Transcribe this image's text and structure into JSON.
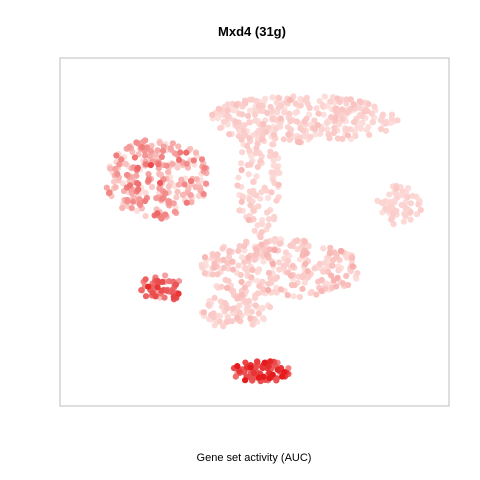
{
  "chart_data": {
    "type": "scatter",
    "title": "Mxd4 (31g)",
    "xlabel": "Gene set activity (AUC)",
    "ylabel": "",
    "axes_visible": false,
    "grid": false,
    "legend": "none",
    "xlim": [
      0,
      100
    ],
    "ylim": [
      0,
      100
    ],
    "color_scale": {
      "low": "#fde0dd",
      "high": "#e41a1c",
      "range": [
        0,
        1
      ]
    },
    "clusters": [
      {
        "label": "top-right arc",
        "cx": 63,
        "cy": 84,
        "rx": 26,
        "ry": 7,
        "n": 300,
        "activity": 0.06,
        "spread": 0.05
      },
      {
        "label": "center column",
        "cx": 51,
        "cy": 66,
        "rx": 6,
        "ry": 18,
        "n": 110,
        "activity": 0.06,
        "spread": 0.05
      },
      {
        "label": "left mass",
        "cx": 24,
        "cy": 66,
        "rx": 14,
        "ry": 12,
        "n": 260,
        "activity": 0.22,
        "spread": 0.18
      },
      {
        "label": "right wing",
        "cx": 89,
        "cy": 58,
        "rx": 6,
        "ry": 6,
        "n": 70,
        "activity": 0.05,
        "spread": 0.03
      },
      {
        "label": "lower-middle band",
        "cx": 57,
        "cy": 39,
        "rx": 22,
        "ry": 9,
        "n": 280,
        "activity": 0.08,
        "spread": 0.07
      },
      {
        "label": "lower-left group",
        "cx": 45,
        "cy": 26,
        "rx": 10,
        "ry": 5,
        "n": 80,
        "activity": 0.06,
        "spread": 0.05
      },
      {
        "label": "small left cluster",
        "cx": 25,
        "cy": 33,
        "rx": 6,
        "ry": 4,
        "n": 60,
        "activity": 0.55,
        "spread": 0.18
      },
      {
        "label": "bottom active cluster",
        "cx": 52,
        "cy": 8,
        "rx": 8,
        "ry": 3.2,
        "n": 90,
        "activity": 0.75,
        "spread": 0.18
      }
    ]
  }
}
